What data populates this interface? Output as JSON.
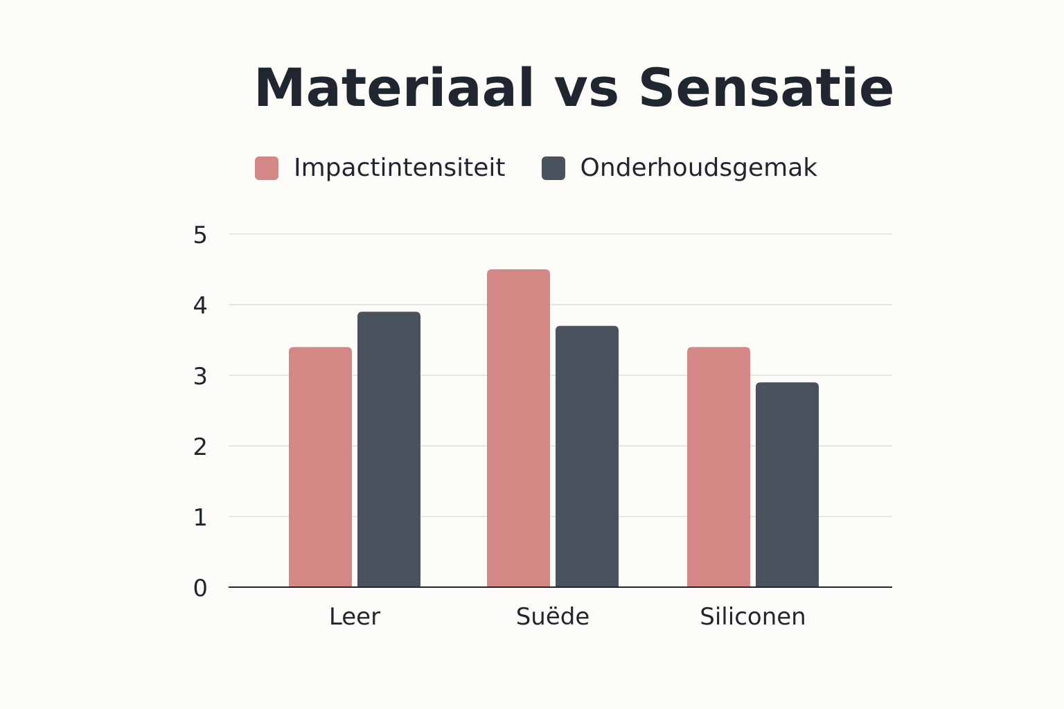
{
  "chart_data": {
    "type": "bar",
    "title": "Materiaal vs Sensatie",
    "categories": [
      "Leer",
      "Suëde",
      "Siliconen"
    ],
    "series": [
      {
        "name": "Impactintensiteit",
        "color": "#d48886",
        "values": [
          3.4,
          4.5,
          3.4
        ]
      },
      {
        "name": "Onderhoudsgemak",
        "color": "#4a525e",
        "values": [
          3.9,
          3.7,
          2.9
        ]
      }
    ],
    "yticks": [
      "0",
      "1",
      "2",
      "3",
      "4",
      "5"
    ],
    "ylim": [
      0,
      5
    ],
    "grid": true,
    "legend": "top",
    "xlabel": "",
    "ylabel": ""
  }
}
